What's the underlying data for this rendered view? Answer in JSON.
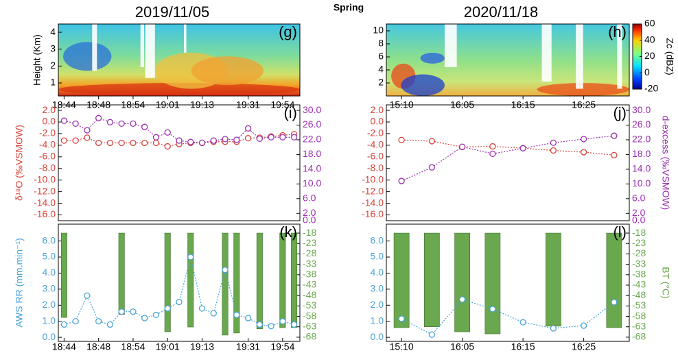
{
  "title": "Spring",
  "chart_data": [
    {
      "type": "heatmap",
      "title": "2019/11/05",
      "panel_label": "(g)",
      "ylabel": "Height (Km)",
      "categories": [
        "18:44",
        null,
        null,
        "18:48",
        null,
        null,
        "18:54",
        null,
        null,
        "19:01",
        null,
        null,
        "19:13",
        null,
        null,
        null,
        "19:31",
        null,
        null,
        "19:54",
        null
      ],
      "ylim": [
        0.23,
        4.49
      ],
      "yticks": [
        1,
        2,
        3,
        4
      ]
    },
    {
      "type": "heatmap",
      "title": "2020/11/18",
      "panel_label": "(h)",
      "categories": [
        "15:10",
        null,
        "16:05",
        null,
        "16:15",
        null,
        "16:25",
        null
      ],
      "ylim": [
        0,
        11.05
      ],
      "yticks": [
        2,
        4,
        6,
        8,
        10
      ],
      "colorbar": {
        "label": "Zc (dBZ)",
        "lim": [
          -20,
          60
        ],
        "ticks": [
          60,
          40,
          20,
          0,
          -20
        ]
      }
    },
    {
      "type": "line",
      "panel_label": "(i)",
      "ylabel": "δ¹⁸O (‰VSMOW)",
      "categories": [
        null,
        null,
        null,
        null,
        null,
        null,
        null,
        null,
        null,
        null,
        null,
        null,
        null,
        null,
        null,
        null,
        null,
        null,
        null,
        null,
        null
      ],
      "ylim": [
        -17,
        2.95
      ],
      "yticks": [
        {
          "value": 2,
          "label": "2.0"
        },
        {
          "value": 0,
          "label": "0.0"
        },
        {
          "value": -2,
          "label": "-2.0"
        },
        {
          "value": -4,
          "label": "-4.0"
        },
        {
          "value": -6,
          "label": "-6.0"
        },
        {
          "value": -8,
          "label": "-8.0"
        },
        {
          "value": -10,
          "label": "-10.0"
        },
        {
          "value": -12,
          "label": "-12.0"
        },
        {
          "value": -14,
          "label": "-14.0"
        },
        {
          "value": -16,
          "label": "-16.0"
        }
      ],
      "y2lim": [
        0,
        31.5
      ],
      "y2ticks": [
        {
          "value": 30,
          "label": "30.0"
        },
        {
          "value": 26,
          "label": "26.0"
        },
        {
          "value": 22,
          "label": "22.0"
        },
        {
          "value": 18,
          "label": "18.0"
        },
        {
          "value": 14,
          "label": "14.0"
        },
        {
          "value": 10,
          "label": "10.0"
        },
        {
          "value": 6,
          "label": "6.0"
        },
        {
          "value": 2,
          "label": "2.0"
        },
        {
          "value": 0,
          "label": "0.0"
        }
      ],
      "series": [
        {
          "color": "#d8433a",
          "values": [
            -3.2,
            -3.2,
            -2.7,
            -3.6,
            -3.6,
            -3.6,
            -3.6,
            -3.6,
            -3.6,
            -4.2,
            -3.8,
            -3.6,
            -3.6,
            -3.4,
            -3.4,
            -3.4,
            -2.8,
            -2.7,
            -2.5,
            -2.3,
            -2.1
          ]
        },
        {
          "color": "#9a2fb0",
          "axis": "y2",
          "values": [
            27.2,
            26.4,
            24.6,
            27.9,
            26.8,
            26.4,
            26.4,
            25.5,
            22.7,
            24.0,
            21.8,
            21.4,
            21.2,
            21.8,
            22.2,
            22.0,
            25.1,
            22.3,
            22.7,
            22.7,
            22.7
          ]
        }
      ]
    },
    {
      "type": "line",
      "panel_label": "(j)",
      "y2label": "d-excess (‰VSMOW)",
      "categories": [
        null,
        null,
        null,
        null,
        null,
        null,
        null,
        null
      ],
      "ylim": [
        -17,
        2.95
      ],
      "yticks": [
        {
          "value": 2,
          "label": "2.0"
        },
        {
          "value": 0,
          "label": "0.0"
        },
        {
          "value": -2,
          "label": "-2.0"
        },
        {
          "value": -4,
          "label": "-4.0"
        },
        {
          "value": -6,
          "label": "-6.0"
        },
        {
          "value": -8,
          "label": "-8.0"
        },
        {
          "value": -10,
          "label": "-10.0"
        },
        {
          "value": -12,
          "label": "-12.0"
        },
        {
          "value": -14,
          "label": "-14.0"
        },
        {
          "value": -16,
          "label": "-16.0"
        }
      ],
      "y2lim": [
        0,
        31.5
      ],
      "y2ticks": [
        {
          "value": 30,
          "label": "30.0"
        },
        {
          "value": 26,
          "label": "26.0"
        },
        {
          "value": 22,
          "label": "22.0"
        },
        {
          "value": 18,
          "label": "18.0"
        },
        {
          "value": 14,
          "label": "14.0"
        },
        {
          "value": 10,
          "label": "10.0"
        },
        {
          "value": 6,
          "label": "6.0"
        },
        {
          "value": 2,
          "label": "2.0"
        },
        {
          "value": 0,
          "label": "0.0"
        }
      ],
      "series": [
        {
          "color": "#d8433a",
          "values": [
            -3.1,
            -3.3,
            -4.3,
            -4.2,
            -4.5,
            -4.9,
            -5.2,
            -5.7
          ]
        },
        {
          "color": "#9a2fb0",
          "axis": "y2",
          "values": [
            10.8,
            14.5,
            20.1,
            18.2,
            19.7,
            21.2,
            22.2,
            23.1
          ]
        }
      ]
    },
    {
      "type": "combo",
      "panel_label": "(k)",
      "ylabel": "AWS RR (mm.min⁻¹)",
      "categories": [
        "18:44",
        null,
        null,
        "18:48",
        null,
        null,
        "18:54",
        null,
        null,
        "19:01",
        null,
        null,
        "19:13",
        null,
        null,
        null,
        "19:31",
        null,
        null,
        "19:54",
        null
      ],
      "ylim": [
        -0.25,
        7.05
      ],
      "yticks": [
        {
          "value": 6,
          "label": "6.0"
        },
        {
          "value": 5,
          "label": "5.0"
        },
        {
          "value": 4,
          "label": "4.0"
        },
        {
          "value": 3,
          "label": "3.0"
        },
        {
          "value": 2,
          "label": "2.0"
        },
        {
          "value": 1,
          "label": "1.0"
        },
        {
          "value": 0,
          "label": "0.0"
        }
      ],
      "y2lim": [
        -70,
        -13.7
      ],
      "y2ticks": [
        -18,
        -23,
        -28,
        -33,
        -38,
        -43,
        -48,
        -53,
        -58,
        -63,
        -68
      ],
      "bar_base": -18,
      "series": [
        {
          "type": "bar",
          "axis": "y2",
          "color": "#6aa84f",
          "values": [
            -58.5,
            null,
            null,
            null,
            null,
            -57.1,
            null,
            null,
            null,
            -65.4,
            null,
            -63.1,
            null,
            null,
            -67,
            -66,
            null,
            -64,
            null,
            -63.4,
            -63.4
          ]
        },
        {
          "type": "line",
          "color": "#4aa3d8",
          "values": [
            0.8,
            1.0,
            2.6,
            1.0,
            0.8,
            1.6,
            1.6,
            1.2,
            1.4,
            1.8,
            2.2,
            5.0,
            1.8,
            1.5,
            4.2,
            1.4,
            1.2,
            0.8,
            0.7,
            1.0,
            0.8
          ]
        }
      ]
    },
    {
      "type": "combo",
      "panel_label": "(l)",
      "y2label": "BT (°C)",
      "categories": [
        "15:10",
        null,
        "16:05",
        null,
        "16:15",
        null,
        "16:25",
        null
      ],
      "ylim": [
        -0.25,
        7.05
      ],
      "yticks": [
        {
          "value": 6,
          "label": "6.0"
        },
        {
          "value": 5,
          "label": "5.0"
        },
        {
          "value": 4,
          "label": "4.0"
        },
        {
          "value": 3,
          "label": "3.0"
        },
        {
          "value": 2,
          "label": "2.0"
        },
        {
          "value": 1,
          "label": "1.0"
        },
        {
          "value": 0,
          "label": "0.0"
        }
      ],
      "y2lim": [
        -70,
        -13.7
      ],
      "y2ticks": [
        -18,
        -23,
        -28,
        -33,
        -38,
        -43,
        -48,
        -53,
        -58,
        -63,
        -68
      ],
      "bar_base": -18,
      "series": [
        {
          "type": "bar",
          "axis": "y2",
          "color": "#6aa84f",
          "values": [
            -63.4,
            -63,
            -65.4,
            -66.4,
            null,
            -62.7,
            null,
            -63.4
          ]
        },
        {
          "type": "line",
          "color": "#4aa3d8",
          "values": [
            1.16,
            0.17,
            2.36,
            1.76,
            0.94,
            0.56,
            0.73,
            2.19
          ]
        }
      ]
    }
  ]
}
